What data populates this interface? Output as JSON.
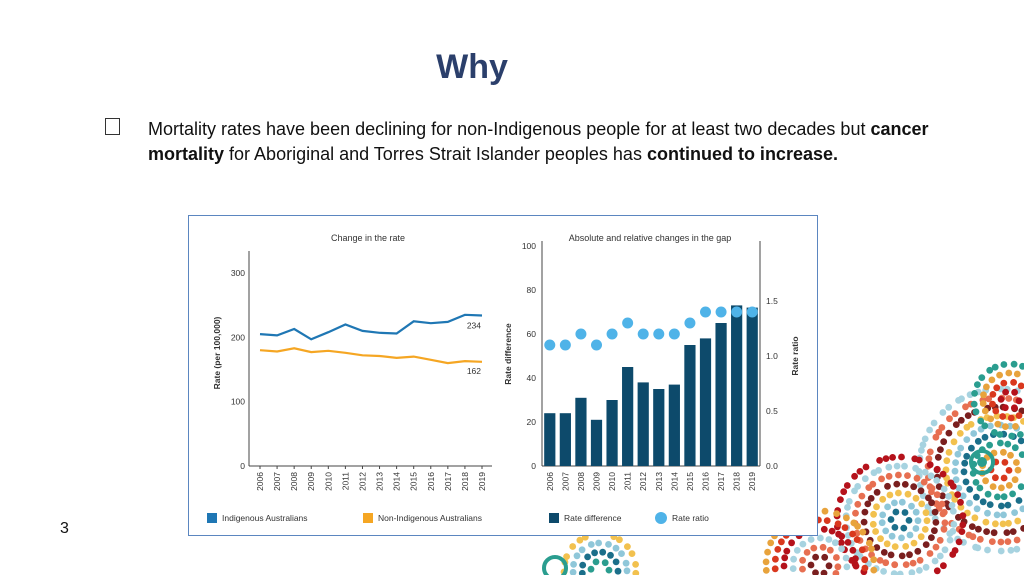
{
  "slide": {
    "title": "Why",
    "bullet": {
      "part1": "Mortality rates have been declining for non-Indigenous people for at least two decades but ",
      "bold1": "cancer mortality",
      "part2": " for Aboriginal and Torres Strait Islander peoples has ",
      "bold2": "continued to increase."
    },
    "page_number": "3"
  },
  "colors": {
    "title": "#2b3f6b",
    "indigenous": "#1f77b4",
    "non_indigenous": "#f5a623",
    "rate_difference": "#0d4a6b",
    "rate_ratio": "#4fb3e8"
  },
  "chart_data": [
    {
      "type": "line",
      "title": "Change in the rate",
      "ylabel": "Rate (per 100,000)",
      "ylim": [
        0,
        300
      ],
      "yticks": [
        "0",
        "100",
        "200",
        "300"
      ],
      "x": [
        "2006",
        "2007",
        "2008",
        "2009",
        "2010",
        "2011",
        "2012",
        "2013",
        "2014",
        "2015",
        "2016",
        "2017",
        "2018",
        "2019"
      ],
      "series": [
        {
          "name": "Indigenous Australians",
          "values": [
            205,
            203,
            213,
            197,
            208,
            220,
            210,
            207,
            206,
            225,
            222,
            224,
            235,
            234
          ]
        },
        {
          "name": "Non-Indigenous Australians",
          "values": [
            180,
            178,
            183,
            177,
            179,
            176,
            172,
            171,
            168,
            170,
            165,
            160,
            163,
            162
          ]
        }
      ],
      "end_labels": [
        "234",
        "162"
      ]
    },
    {
      "type": "bar",
      "title": "Absolute and relative changes in the gap",
      "ylabel": "Rate difference",
      "y2label": "Rate ratio",
      "ylim": [
        0,
        100
      ],
      "yticks": [
        "0",
        "20",
        "40",
        "60",
        "80",
        "100"
      ],
      "y2lim": [
        0,
        2
      ],
      "y2ticks": [
        "0.0",
        "0.5",
        "1.0",
        "1.5"
      ],
      "x": [
        "2006",
        "2007",
        "2008",
        "2009",
        "2010",
        "2011",
        "2012",
        "2013",
        "2014",
        "2015",
        "2016",
        "2017",
        "2018",
        "2019"
      ],
      "series": [
        {
          "name": "Rate difference",
          "type": "bar",
          "values": [
            24,
            24,
            31,
            21,
            30,
            45,
            38,
            35,
            37,
            55,
            58,
            65,
            73,
            72
          ]
        },
        {
          "name": "Rate ratio",
          "type": "scatter",
          "values": [
            1.1,
            1.1,
            1.2,
            1.1,
            1.2,
            1.3,
            1.2,
            1.2,
            1.2,
            1.3,
            1.4,
            1.4,
            1.4,
            1.4
          ]
        }
      ]
    }
  ]
}
